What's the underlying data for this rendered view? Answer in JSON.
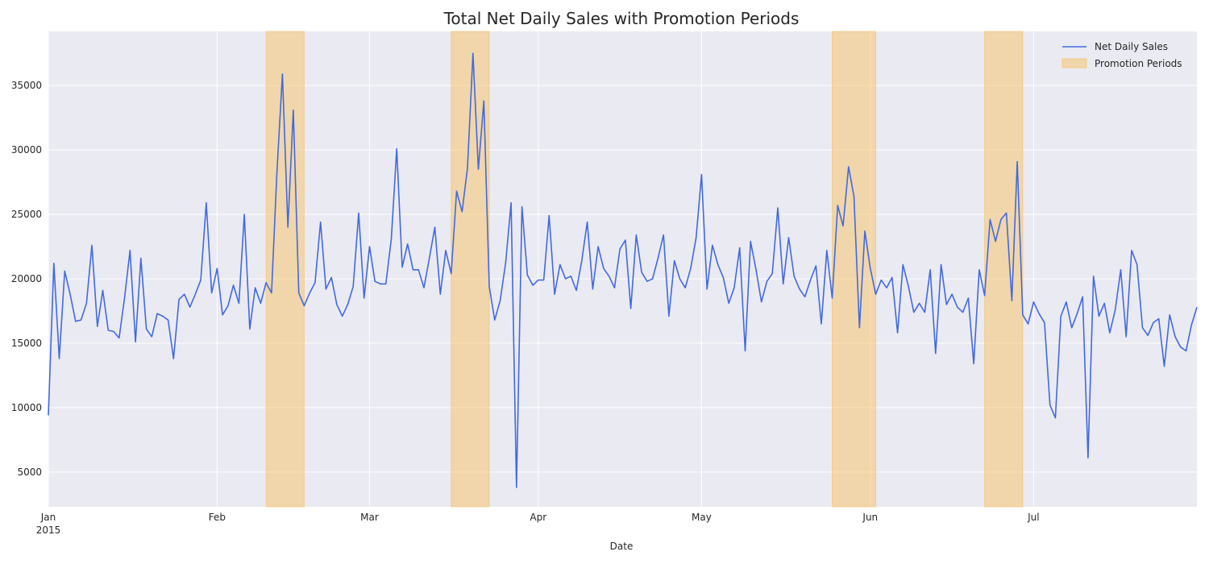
{
  "chart_data": {
    "type": "line",
    "title": "Total Net Daily Sales with Promotion Periods",
    "xlabel": "Date",
    "ylabel": "",
    "x_range": [
      "2015-01-01",
      "2015-07-31"
    ],
    "ylim": [
      2300,
      39200
    ],
    "grid": true,
    "legend_position": "top-right",
    "colors": {
      "line": "#4169e1",
      "promo": "#f5c161",
      "background": "#eaeaf2",
      "grid": "#ffffff"
    },
    "y_ticks": [
      5000,
      10000,
      15000,
      20000,
      25000,
      30000,
      35000
    ],
    "y_tick_labels": [
      "5000",
      "10000",
      "15000",
      "20000",
      "25000",
      "30000",
      "35000"
    ],
    "x_ticks": [
      {
        "date": "2015-01-01",
        "label": "Jan",
        "sublabel": "2015"
      },
      {
        "date": "2015-02-01",
        "label": "Feb",
        "sublabel": ""
      },
      {
        "date": "2015-03-01",
        "label": "Mar",
        "sublabel": ""
      },
      {
        "date": "2015-04-01",
        "label": "Apr",
        "sublabel": ""
      },
      {
        "date": "2015-05-01",
        "label": "May",
        "sublabel": ""
      },
      {
        "date": "2015-06-01",
        "label": "Jun",
        "sublabel": ""
      },
      {
        "date": "2015-07-01",
        "label": "Jul",
        "sublabel": ""
      }
    ],
    "series": [
      {
        "name": "Net Daily Sales",
        "x": [
          "2015-01-01",
          "2015-01-02",
          "2015-01-03",
          "2015-01-04",
          "2015-01-05",
          "2015-01-06",
          "2015-01-07",
          "2015-01-08",
          "2015-01-09",
          "2015-01-10",
          "2015-01-11",
          "2015-01-12",
          "2015-01-13",
          "2015-01-14",
          "2015-01-15",
          "2015-01-16",
          "2015-01-17",
          "2015-01-18",
          "2015-01-19",
          "2015-01-20",
          "2015-01-21",
          "2015-01-22",
          "2015-01-23",
          "2015-01-24",
          "2015-01-25",
          "2015-01-26",
          "2015-01-27",
          "2015-01-28",
          "2015-01-29",
          "2015-01-30",
          "2015-01-31",
          "2015-02-01",
          "2015-02-02",
          "2015-02-03",
          "2015-02-04",
          "2015-02-05",
          "2015-02-06",
          "2015-02-07",
          "2015-02-08",
          "2015-02-09",
          "2015-02-10",
          "2015-02-11",
          "2015-02-12",
          "2015-02-13",
          "2015-02-14",
          "2015-02-15",
          "2015-02-16",
          "2015-02-17",
          "2015-02-18",
          "2015-02-19",
          "2015-02-20",
          "2015-02-21",
          "2015-02-22",
          "2015-02-23",
          "2015-02-24",
          "2015-02-25",
          "2015-02-26",
          "2015-02-27",
          "2015-02-28",
          "2015-03-01",
          "2015-03-02",
          "2015-03-03",
          "2015-03-04",
          "2015-03-05",
          "2015-03-06",
          "2015-03-07",
          "2015-03-08",
          "2015-03-09",
          "2015-03-10",
          "2015-03-11",
          "2015-03-12",
          "2015-03-13",
          "2015-03-14",
          "2015-03-15",
          "2015-03-16",
          "2015-03-17",
          "2015-03-18",
          "2015-03-19",
          "2015-03-20",
          "2015-03-21",
          "2015-03-22",
          "2015-03-23",
          "2015-03-24",
          "2015-03-25",
          "2015-03-26",
          "2015-03-27",
          "2015-03-28",
          "2015-03-29",
          "2015-03-30",
          "2015-03-31",
          "2015-04-01",
          "2015-04-02",
          "2015-04-03",
          "2015-04-04",
          "2015-04-05",
          "2015-04-06",
          "2015-04-07",
          "2015-04-08",
          "2015-04-09",
          "2015-04-10",
          "2015-04-11",
          "2015-04-12",
          "2015-04-13",
          "2015-04-14",
          "2015-04-15",
          "2015-04-16",
          "2015-04-17",
          "2015-04-18",
          "2015-04-19",
          "2015-04-20",
          "2015-04-21",
          "2015-04-22",
          "2015-04-23",
          "2015-04-24",
          "2015-04-25",
          "2015-04-26",
          "2015-04-27",
          "2015-04-28",
          "2015-04-29",
          "2015-04-30",
          "2015-05-01",
          "2015-05-02",
          "2015-05-03",
          "2015-05-04",
          "2015-05-05",
          "2015-05-06",
          "2015-05-07",
          "2015-05-08",
          "2015-05-09",
          "2015-05-10",
          "2015-05-11",
          "2015-05-12",
          "2015-05-13",
          "2015-05-14",
          "2015-05-15",
          "2015-05-16",
          "2015-05-17",
          "2015-05-18",
          "2015-05-19",
          "2015-05-20",
          "2015-05-21",
          "2015-05-22",
          "2015-05-23",
          "2015-05-24",
          "2015-05-25",
          "2015-05-26",
          "2015-05-27",
          "2015-05-28",
          "2015-05-29",
          "2015-05-30",
          "2015-05-31",
          "2015-06-01",
          "2015-06-02",
          "2015-06-03",
          "2015-06-04",
          "2015-06-05",
          "2015-06-06",
          "2015-06-07",
          "2015-06-08",
          "2015-06-09",
          "2015-06-10",
          "2015-06-11",
          "2015-06-12",
          "2015-06-13",
          "2015-06-14",
          "2015-06-15",
          "2015-06-16",
          "2015-06-17",
          "2015-06-18",
          "2015-06-19",
          "2015-06-20",
          "2015-06-21",
          "2015-06-22",
          "2015-06-23",
          "2015-06-24",
          "2015-06-25",
          "2015-06-26",
          "2015-06-27",
          "2015-06-28",
          "2015-06-29",
          "2015-06-30",
          "2015-07-01",
          "2015-07-02",
          "2015-07-03",
          "2015-07-04",
          "2015-07-05",
          "2015-07-06",
          "2015-07-07",
          "2015-07-08",
          "2015-07-09",
          "2015-07-10",
          "2015-07-11",
          "2015-07-12",
          "2015-07-13",
          "2015-07-14",
          "2015-07-15",
          "2015-07-16",
          "2015-07-17",
          "2015-07-18",
          "2015-07-19",
          "2015-07-20",
          "2015-07-21",
          "2015-07-22",
          "2015-07-23",
          "2015-07-24",
          "2015-07-25",
          "2015-07-26",
          "2015-07-27",
          "2015-07-28",
          "2015-07-29",
          "2015-07-30",
          "2015-07-31"
        ],
        "values": [
          9400,
          21200,
          13800,
          20600,
          18800,
          16700,
          16800,
          18100,
          22600,
          16300,
          19100,
          16000,
          15900,
          15400,
          18500,
          22200,
          15100,
          21600,
          16100,
          15500,
          17300,
          17100,
          16800,
          13800,
          18400,
          18800,
          17800,
          18800,
          19900,
          25900,
          18900,
          20800,
          17200,
          17900,
          19500,
          18100,
          25000,
          16100,
          19300,
          18100,
          19700,
          18900,
          28300,
          35900,
          24000,
          33100,
          18900,
          17900,
          18900,
          19700,
          24400,
          19200,
          20100,
          18000,
          17100,
          18000,
          19400,
          25100,
          18500,
          22500,
          19800,
          19600,
          19600,
          23100,
          30100,
          20900,
          22700,
          20700,
          20700,
          19300,
          21600,
          24000,
          18800,
          22200,
          20400,
          26800,
          25200,
          28600,
          37500,
          28500,
          33800,
          19400,
          16800,
          18300,
          21200,
          25900,
          3800,
          25600,
          20300,
          19500,
          19900,
          19900,
          24900,
          18800,
          21100,
          20000,
          20200,
          19100,
          21400,
          24400,
          19200,
          22500,
          20800,
          20200,
          19300,
          22300,
          23000,
          17700,
          23400,
          20500,
          19800,
          20000,
          21600,
          23400,
          17100,
          21400,
          20000,
          19300,
          20800,
          23200,
          28100,
          19200,
          22600,
          21100,
          20100,
          18100,
          19300,
          22400,
          14400,
          22900,
          20700,
          18200,
          19800,
          20400,
          25500,
          19600,
          23200,
          20200,
          19200,
          18600,
          19900,
          21000,
          16500,
          22200,
          18500,
          25700,
          24100,
          28700,
          26400,
          16200,
          23700,
          20800,
          18800,
          19900,
          19300,
          20100,
          15800,
          21100,
          19400,
          17400,
          18100,
          17400,
          20700,
          14200,
          21100,
          18000,
          18800,
          17800,
          17400,
          18500,
          13400,
          20700,
          18700,
          24600,
          22900,
          24600,
          25100,
          18300,
          29100,
          17200,
          16500,
          18200,
          17300,
          16600,
          10200,
          9200,
          17100,
          18200,
          16200,
          17300,
          18600,
          6100,
          20200,
          17100,
          18100,
          15800,
          17600,
          20700,
          15500,
          22200,
          21100,
          16200,
          15600,
          16600,
          16900,
          13200,
          17200,
          15500,
          14700,
          14400,
          16400,
          17800
        ]
      }
    ],
    "promotion_periods": {
      "name": "Promotion Periods",
      "ranges": [
        [
          "2015-02-10",
          "2015-02-17"
        ],
        [
          "2015-03-16",
          "2015-03-23"
        ],
        [
          "2015-05-25",
          "2015-06-02"
        ],
        [
          "2015-06-22",
          "2015-06-29"
        ]
      ]
    }
  }
}
